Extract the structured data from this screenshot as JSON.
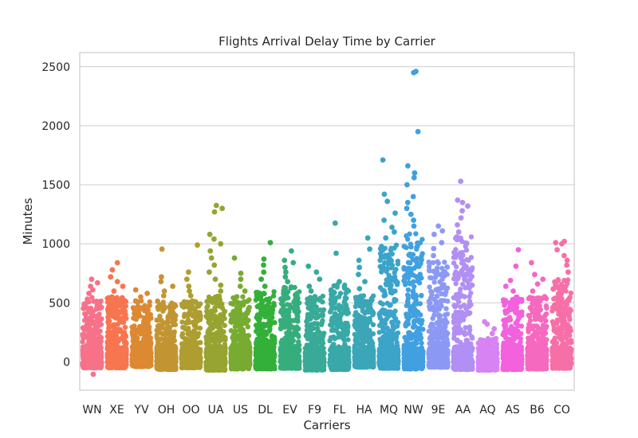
{
  "chart_data": {
    "type": "scatter",
    "title": "Flights Arrival Delay Time by Carrier",
    "xlabel": "Carriers",
    "ylabel": "Minutes",
    "ylim": [
      -240,
      2620
    ],
    "yticks": [
      0,
      500,
      1000,
      1500,
      2000,
      2500
    ],
    "grid": "horizontal",
    "categories": [
      "WN",
      "XE",
      "YV",
      "OH",
      "OO",
      "UA",
      "US",
      "DL",
      "EV",
      "F9",
      "FL",
      "HA",
      "MQ",
      "NW",
      "9E",
      "AA",
      "AQ",
      "AS",
      "B6",
      "CO"
    ],
    "series": [
      {
        "category": "WN",
        "color": "#f77189",
        "min": -50,
        "dense_max": 550,
        "outliers": [
          -105,
          580,
          610,
          640,
          670,
          700
        ]
      },
      {
        "category": "XE",
        "color": "#f7754f",
        "min": -50,
        "dense_max": 560,
        "outliers": [
          600,
          640,
          680,
          720,
          780,
          840
        ]
      },
      {
        "category": "YV",
        "color": "#dc8932",
        "min": -40,
        "dense_max": 520,
        "outliers": [
          550,
          580,
          610
        ]
      },
      {
        "category": "OH",
        "color": "#c39532",
        "min": -65,
        "dense_max": 520,
        "outliers": [
          560,
          600,
          640,
          680,
          720,
          955
        ]
      },
      {
        "category": "OO",
        "color": "#ae9d31",
        "min": -50,
        "dense_max": 520,
        "outliers": [
          560,
          600,
          640,
          700,
          760,
          990
        ]
      },
      {
        "category": "UA",
        "color": "#97a431",
        "min": -70,
        "dense_max": 560,
        "outliers": [
          600,
          650,
          700,
          760,
          820,
          880,
          940,
          1000,
          1040,
          1080,
          1270,
          1300,
          1325
        ]
      },
      {
        "category": "US",
        "color": "#77ab31",
        "min": -60,
        "dense_max": 560,
        "outliers": [
          600,
          640,
          700,
          750,
          880
        ]
      },
      {
        "category": "DL",
        "color": "#33b039",
        "min": -60,
        "dense_max": 600,
        "outliers": [
          640,
          700,
          760,
          820,
          870,
          1010
        ]
      },
      {
        "category": "EV",
        "color": "#36ad7c",
        "min": -55,
        "dense_max": 640,
        "outliers": [
          680,
          720,
          760,
          800,
          840,
          860,
          940
        ]
      },
      {
        "category": "F9",
        "color": "#38aa97",
        "min": -70,
        "dense_max": 560,
        "outliers": [
          600,
          640,
          700,
          760,
          810
        ]
      },
      {
        "category": "FL",
        "color": "#39a8a8",
        "min": -65,
        "dense_max": 660,
        "outliers": [
          680,
          920,
          1175
        ]
      },
      {
        "category": "HA",
        "color": "#3aa6b8",
        "min": -45,
        "dense_max": 560,
        "outliers": [
          620,
          680,
          740,
          800,
          860,
          955,
          1050
        ]
      },
      {
        "category": "MQ",
        "color": "#3ca3c9",
        "min": -55,
        "dense_max": 1000,
        "outliers": [
          1050,
          1100,
          1140,
          1200,
          1260,
          1360,
          1420,
          1710
        ]
      },
      {
        "category": "NW",
        "color": "#40a0e0",
        "min": -60,
        "dense_max": 1100,
        "outliers": [
          1150,
          1200,
          1250,
          1300,
          1350,
          1400,
          1500,
          1560,
          1600,
          1660,
          1950,
          2450,
          2460
        ]
      },
      {
        "category": "9E",
        "color": "#8c99f4",
        "min": -45,
        "dense_max": 860,
        "outliers": [
          900,
          960,
          1010,
          1080,
          1110,
          1150
        ]
      },
      {
        "category": "AA",
        "color": "#b18ff4",
        "min": -65,
        "dense_max": 1060,
        "outliers": [
          1100,
          1160,
          1220,
          1280,
          1320,
          1350,
          1370,
          1530
        ]
      },
      {
        "category": "AQ",
        "color": "#d783f4",
        "min": -70,
        "dense_max": 200,
        "outliers": [
          240,
          280,
          320,
          340
        ]
      },
      {
        "category": "AS",
        "color": "#f361dd",
        "min": -65,
        "dense_max": 560,
        "outliers": [
          600,
          640,
          690,
          810,
          950
        ]
      },
      {
        "category": "B6",
        "color": "#f569be",
        "min": -60,
        "dense_max": 560,
        "outliers": [
          600,
          660,
          700,
          740,
          840
        ]
      },
      {
        "category": "CO",
        "color": "#f66fa6",
        "min": -55,
        "dense_max": 700,
        "outliers": [
          760,
          820,
          860,
          900,
          950,
          1000,
          1010,
          1020
        ]
      }
    ]
  }
}
